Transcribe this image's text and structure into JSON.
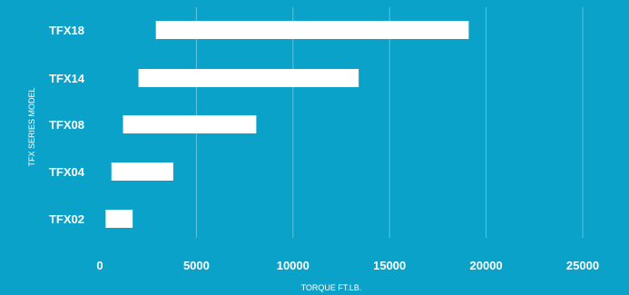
{
  "chart_data": {
    "type": "bar",
    "orientation": "horizontal",
    "stacked_range": true,
    "categories": [
      "TFX18",
      "TFX14",
      "TFX08",
      "TFX04",
      "TFX02"
    ],
    "series": [
      {
        "ranges": [
          [
            2900,
            19100
          ],
          [
            2000,
            13400
          ],
          [
            1200,
            8100
          ],
          [
            600,
            3800
          ],
          [
            300,
            1700
          ]
        ]
      }
    ],
    "x_ticks": [
      0,
      5000,
      10000,
      15000,
      20000,
      25000
    ],
    "xlim": [
      0,
      25000
    ],
    "title": "",
    "xlabel": "TORQUE FT.LB.",
    "ylabel": "TFX SERIES MODEL",
    "grid": true,
    "legend": "none",
    "colors": {
      "background": "#0aa2c9",
      "bar": "#ffffff",
      "grid": "#5cc3de",
      "text": "#ffffff"
    }
  }
}
